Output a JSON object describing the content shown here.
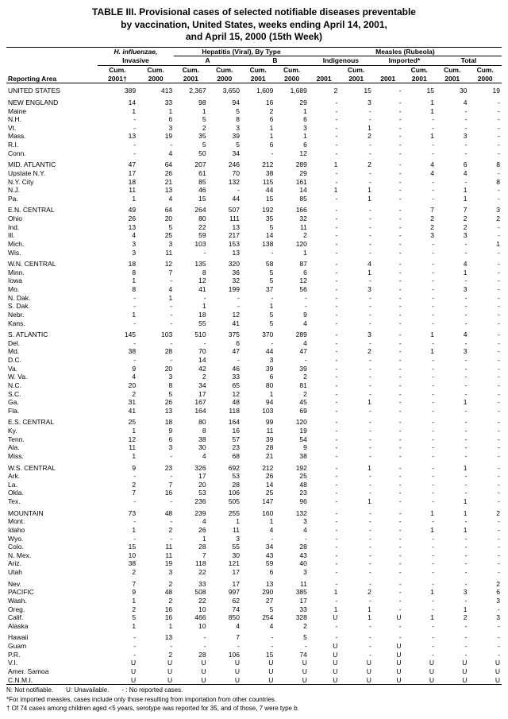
{
  "title_l1": "TABLE III. Provisional cases of selected notifiable diseases preventable",
  "title_l2": "by vaccination, United States, weeks ending April 14, 2001,",
  "title_l3": "and April 15, 2000 (15th Week)",
  "headers": {
    "area": "Reporting Area",
    "hflu": "H. influenzae,",
    "hflu2": "Invasive",
    "hep": "Hepatitis (Viral), By Type",
    "hepA": "A",
    "hepB": "B",
    "measles": "Measles (Rubeola)",
    "indig": "Indigenous",
    "imp": "Imported*",
    "total": "Total",
    "cum": "Cum.",
    "y01": "2001",
    "y01d": "2001†",
    "y00": "2000"
  },
  "rows": [
    [
      "UNITED STATES",
      "389",
      "413",
      "2,367",
      "3,650",
      "1,609",
      "1,689",
      "2",
      "15",
      "-",
      "15",
      "30",
      "19"
    ],
    [
      "NEW ENGLAND",
      "14",
      "33",
      "98",
      "94",
      "16",
      "29",
      "-",
      "3",
      "-",
      "1",
      "4",
      "-"
    ],
    [
      "Maine",
      "1",
      "1",
      "1",
      "5",
      "2",
      "1",
      "-",
      "-",
      "-",
      "1",
      "-",
      "-"
    ],
    [
      "N.H.",
      "-",
      "6",
      "5",
      "8",
      "6",
      "6",
      "-",
      "-",
      "-",
      "-",
      "-",
      "-"
    ],
    [
      "Vt.",
      "-",
      "3",
      "2",
      "3",
      "1",
      "3",
      "-",
      "1",
      "-",
      "-",
      "-",
      "-"
    ],
    [
      "Mass.",
      "13",
      "19",
      "35",
      "39",
      "1",
      "1",
      "-",
      "2",
      "-",
      "1",
      "3",
      "-"
    ],
    [
      "R.I.",
      "-",
      "-",
      "5",
      "5",
      "6",
      "6",
      "-",
      "-",
      "-",
      "-",
      "-",
      "-"
    ],
    [
      "Conn.",
      "-",
      "4",
      "50",
      "34",
      "-",
      "12",
      "-",
      "-",
      "-",
      "-",
      "-",
      "-"
    ],
    [
      "MID. ATLANTIC",
      "47",
      "64",
      "207",
      "246",
      "212",
      "289",
      "1",
      "2",
      "-",
      "4",
      "6",
      "8"
    ],
    [
      "Upstate N.Y.",
      "17",
      "26",
      "61",
      "70",
      "38",
      "29",
      "-",
      "-",
      "-",
      "4",
      "4",
      "-"
    ],
    [
      "N.Y. City",
      "18",
      "21",
      "85",
      "132",
      "115",
      "161",
      "-",
      "-",
      "-",
      "-",
      "-",
      "8"
    ],
    [
      "N.J.",
      "11",
      "13",
      "46",
      "-",
      "44",
      "14",
      "1",
      "1",
      "-",
      "-",
      "1",
      "-"
    ],
    [
      "Pa.",
      "1",
      "4",
      "15",
      "44",
      "15",
      "85",
      "-",
      "1",
      "-",
      "-",
      "1",
      "-"
    ],
    [
      "E.N. CENTRAL",
      "49",
      "64",
      "264",
      "507",
      "192",
      "166",
      "-",
      "-",
      "-",
      "7",
      "7",
      "3"
    ],
    [
      "Ohio",
      "26",
      "20",
      "80",
      "111",
      "35",
      "32",
      "-",
      "-",
      "-",
      "2",
      "2",
      "2"
    ],
    [
      "Ind.",
      "13",
      "5",
      "22",
      "13",
      "5",
      "11",
      "-",
      "-",
      "-",
      "2",
      "2",
      "-"
    ],
    [
      "Ill.",
      "4",
      "25",
      "59",
      "217",
      "14",
      "2",
      "-",
      "-",
      "-",
      "3",
      "3",
      "-"
    ],
    [
      "Mich.",
      "3",
      "3",
      "103",
      "153",
      "138",
      "120",
      "-",
      "-",
      "-",
      "-",
      "-",
      "1"
    ],
    [
      "Wis.",
      "3",
      "11",
      "-",
      "13",
      "-",
      "1",
      "-",
      "-",
      "-",
      "-",
      "-",
      "-"
    ],
    [
      "W.N. CENTRAL",
      "18",
      "12",
      "135",
      "320",
      "58",
      "87",
      "-",
      "4",
      "-",
      "-",
      "4",
      "-"
    ],
    [
      "Minn.",
      "8",
      "7",
      "8",
      "36",
      "5",
      "6",
      "-",
      "1",
      "-",
      "-",
      "1",
      "-"
    ],
    [
      "Iowa",
      "1",
      "-",
      "12",
      "32",
      "5",
      "12",
      "-",
      "-",
      "-",
      "-",
      "-",
      "-"
    ],
    [
      "Mo.",
      "8",
      "4",
      "41",
      "199",
      "37",
      "56",
      "-",
      "3",
      "-",
      "-",
      "3",
      "-"
    ],
    [
      "N. Dak.",
      "-",
      "1",
      "-",
      "-",
      "-",
      "-",
      "-",
      "-",
      "-",
      "-",
      "-",
      "-"
    ],
    [
      "S. Dak.",
      "-",
      "-",
      "1",
      "-",
      "1",
      "-",
      "-",
      "-",
      "-",
      "-",
      "-",
      "-"
    ],
    [
      "Nebr.",
      "1",
      "-",
      "18",
      "12",
      "5",
      "9",
      "-",
      "-",
      "-",
      "-",
      "-",
      "-"
    ],
    [
      "Kans.",
      "-",
      "-",
      "55",
      "41",
      "5",
      "4",
      "-",
      "-",
      "-",
      "-",
      "-",
      "-"
    ],
    [
      "S. ATLANTIC",
      "145",
      "103",
      "510",
      "375",
      "370",
      "289",
      "-",
      "3",
      "-",
      "1",
      "4",
      "-"
    ],
    [
      "Del.",
      "-",
      "-",
      "-",
      "6",
      "-",
      "4",
      "-",
      "-",
      "-",
      "-",
      "-",
      "-"
    ],
    [
      "Md.",
      "38",
      "28",
      "70",
      "47",
      "44",
      "47",
      "-",
      "2",
      "-",
      "1",
      "3",
      "-"
    ],
    [
      "D.C.",
      "-",
      "-",
      "14",
      "-",
      "3",
      "-",
      "-",
      "-",
      "-",
      "-",
      "-",
      "-"
    ],
    [
      "Va.",
      "9",
      "20",
      "42",
      "46",
      "39",
      "39",
      "-",
      "-",
      "-",
      "-",
      "-",
      "-"
    ],
    [
      "W. Va.",
      "4",
      "3",
      "2",
      "33",
      "6",
      "2",
      "-",
      "-",
      "-",
      "-",
      "-",
      "-"
    ],
    [
      "N.C.",
      "20",
      "8",
      "34",
      "65",
      "80",
      "81",
      "-",
      "-",
      "-",
      "-",
      "-",
      "-"
    ],
    [
      "S.C.",
      "2",
      "5",
      "17",
      "12",
      "1",
      "2",
      "-",
      "-",
      "-",
      "-",
      "-",
      "-"
    ],
    [
      "Ga.",
      "31",
      "26",
      "167",
      "48",
      "94",
      "45",
      "-",
      "1",
      "-",
      "-",
      "1",
      "-"
    ],
    [
      "Fla.",
      "41",
      "13",
      "164",
      "118",
      "103",
      "69",
      "-",
      "-",
      "-",
      "-",
      "-",
      "-"
    ],
    [
      "E.S. CENTRAL",
      "25",
      "18",
      "80",
      "164",
      "99",
      "120",
      "-",
      "-",
      "-",
      "-",
      "-",
      "-"
    ],
    [
      "Ky.",
      "1",
      "9",
      "8",
      "16",
      "11",
      "19",
      "-",
      "-",
      "-",
      "-",
      "-",
      "-"
    ],
    [
      "Tenn.",
      "12",
      "6",
      "38",
      "57",
      "39",
      "54",
      "-",
      "-",
      "-",
      "-",
      "-",
      "-"
    ],
    [
      "Ala.",
      "11",
      "3",
      "30",
      "23",
      "28",
      "9",
      "-",
      "-",
      "-",
      "-",
      "-",
      "-"
    ],
    [
      "Miss.",
      "1",
      "-",
      "4",
      "68",
      "21",
      "38",
      "-",
      "-",
      "-",
      "-",
      "-",
      "-"
    ],
    [
      "W.S. CENTRAL",
      "9",
      "23",
      "326",
      "692",
      "212",
      "192",
      "-",
      "1",
      "-",
      "-",
      "1",
      "-"
    ],
    [
      "Ark.",
      "-",
      "-",
      "17",
      "53",
      "26",
      "25",
      "-",
      "-",
      "-",
      "-",
      "-",
      "-"
    ],
    [
      "La.",
      "2",
      "7",
      "20",
      "28",
      "14",
      "48",
      "-",
      "-",
      "-",
      "-",
      "-",
      "-"
    ],
    [
      "Okla.",
      "7",
      "16",
      "53",
      "106",
      "25",
      "23",
      "-",
      "-",
      "-",
      "-",
      "-",
      "-"
    ],
    [
      "Tex.",
      "-",
      "-",
      "236",
      "505",
      "147",
      "96",
      "-",
      "1",
      "-",
      "-",
      "1",
      "-"
    ],
    [
      "MOUNTAIN",
      "73",
      "48",
      "239",
      "255",
      "160",
      "132",
      "-",
      "-",
      "-",
      "1",
      "1",
      "2"
    ],
    [
      "Mont.",
      "-",
      "-",
      "4",
      "1",
      "1",
      "3",
      "-",
      "-",
      "-",
      "-",
      "-",
      "-"
    ],
    [
      "Idaho",
      "1",
      "2",
      "26",
      "11",
      "4",
      "4",
      "-",
      "-",
      "-",
      "1",
      "1",
      "-"
    ],
    [
      "Wyo.",
      "-",
      "-",
      "1",
      "3",
      "-",
      "-",
      "-",
      "-",
      "-",
      "-",
      "-",
      "-"
    ],
    [
      "Colo.",
      "15",
      "11",
      "28",
      "55",
      "34",
      "28",
      "-",
      "-",
      "-",
      "-",
      "-",
      "-"
    ],
    [
      "N. Mex.",
      "10",
      "11",
      "7",
      "30",
      "43",
      "43",
      "-",
      "-",
      "-",
      "-",
      "-",
      "-"
    ],
    [
      "Ariz.",
      "38",
      "19",
      "118",
      "121",
      "59",
      "40",
      "-",
      "-",
      "-",
      "-",
      "-",
      "-"
    ],
    [
      "Utah",
      "2",
      "3",
      "22",
      "17",
      "6",
      "3",
      "-",
      "-",
      "-",
      "-",
      "-",
      "-"
    ],
    [
      "Nev.",
      "7",
      "2",
      "33",
      "17",
      "13",
      "11",
      "-",
      "-",
      "-",
      "-",
      "-",
      "2"
    ],
    [
      "PACIFIC",
      "9",
      "48",
      "508",
      "997",
      "290",
      "385",
      "1",
      "2",
      "-",
      "1",
      "3",
      "6"
    ],
    [
      "Wash.",
      "1",
      "2",
      "22",
      "62",
      "27",
      "17",
      "-",
      "-",
      "-",
      "-",
      "-",
      "3"
    ],
    [
      "Oreg.",
      "2",
      "16",
      "10",
      "74",
      "5",
      "33",
      "1",
      "1",
      "-",
      "-",
      "1",
      "-"
    ],
    [
      "Calif.",
      "5",
      "16",
      "466",
      "850",
      "254",
      "328",
      "U",
      "1",
      "U",
      "1",
      "2",
      "3"
    ],
    [
      "Alaska",
      "1",
      "1",
      "10",
      "4",
      "4",
      "2",
      "-",
      "-",
      "-",
      "-",
      "-",
      "-"
    ],
    [
      "Hawaii",
      "-",
      "13",
      "-",
      "7",
      "-",
      "5",
      "-",
      "-",
      "-",
      "-",
      "-",
      "-"
    ],
    [
      "Guam",
      "-",
      "-",
      "-",
      "-",
      "-",
      "-",
      "U",
      "-",
      "U",
      "-",
      "-",
      "-"
    ],
    [
      "P.R.",
      "-",
      "2",
      "28",
      "106",
      "15",
      "74",
      "U",
      "-",
      "U",
      "-",
      "-",
      "-"
    ],
    [
      "V.I.",
      "U",
      "U",
      "U",
      "U",
      "U",
      "U",
      "U",
      "U",
      "U",
      "U",
      "U",
      "U"
    ],
    [
      "Amer. Samoa",
      "U",
      "U",
      "U",
      "U",
      "U",
      "U",
      "U",
      "U",
      "U",
      "U",
      "U",
      "U"
    ],
    [
      "C.N.M.I.",
      "U",
      "U",
      "U",
      "U",
      "U",
      "U",
      "U",
      "U",
      "U",
      "U",
      "U",
      "U"
    ]
  ],
  "group_starts": [
    1,
    8,
    13,
    19,
    27,
    37,
    42,
    47,
    55,
    61
  ],
  "foot1": "N: Not notifiable.  U: Unavailable.  - : No reported cases.",
  "foot2": "*For imported measles, cases include only those resulting from importation from other countries.",
  "foot3": "† Of 74 cases among children aged <5 years, serotype was reported for 35, and of those, 7 were type b."
}
